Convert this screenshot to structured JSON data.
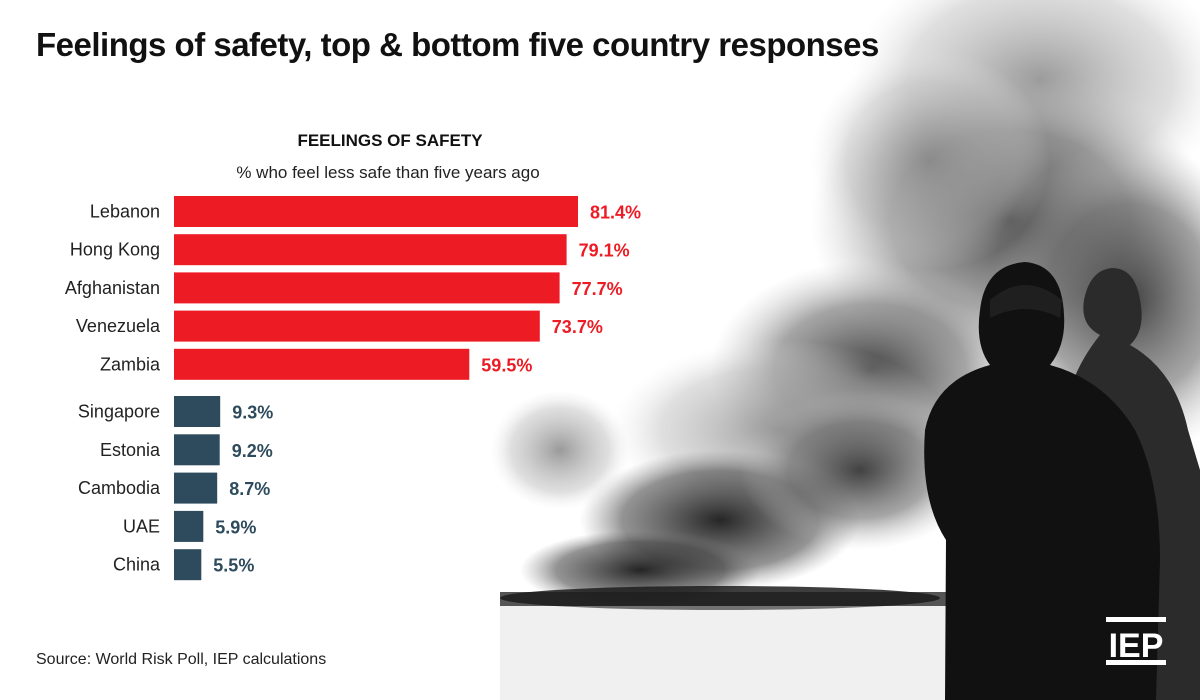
{
  "page": {
    "title": "Feelings of safety, top & bottom five country responses",
    "source": "Source: World Risk Poll, IEP calculations",
    "logo_text": "IEP"
  },
  "colors": {
    "top_five": "#ed1c24",
    "bottom_five": "#2d4b5c",
    "text": "#111111"
  },
  "chart_data": {
    "type": "bar",
    "orientation": "horizontal",
    "title": "FEELINGS OF SAFETY",
    "subtitle": "% who feel less safe than five years ago",
    "xlabel": "",
    "ylabel": "",
    "xlim": [
      0,
      100
    ],
    "grid": false,
    "value_suffix": "%",
    "groups": [
      {
        "name": "top five",
        "categories": [
          "Lebanon",
          "Hong Kong",
          "Afghanistan",
          "Venezuela",
          "Zambia"
        ],
        "values": [
          81.4,
          79.1,
          77.7,
          73.7,
          59.5
        ]
      },
      {
        "name": "bottom five",
        "categories": [
          "Singapore",
          "Estonia",
          "Cambodia",
          "UAE",
          "China"
        ],
        "values": [
          9.3,
          9.2,
          8.7,
          5.9,
          5.5
        ]
      }
    ]
  }
}
